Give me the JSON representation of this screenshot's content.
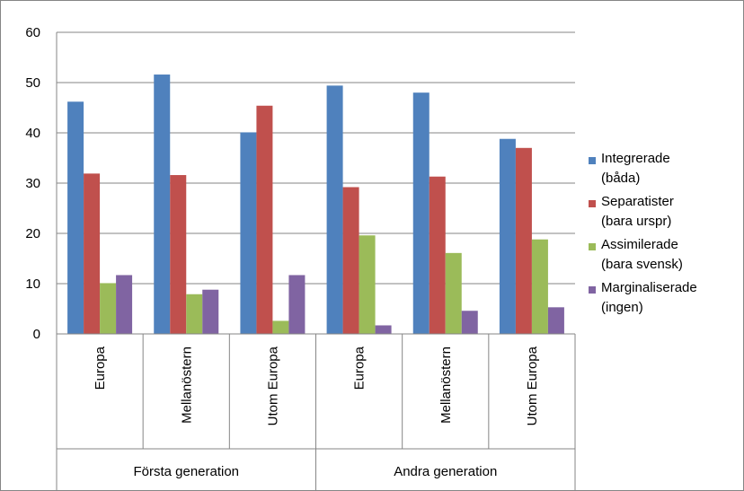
{
  "chart_data": {
    "type": "bar",
    "title": "",
    "xlabel": "",
    "ylabel": "",
    "ylim": [
      0,
      60
    ],
    "yticks": [
      "0",
      "10",
      "20",
      "30",
      "40",
      "50",
      "60"
    ],
    "grid": true,
    "legend_position": "right",
    "groups": [
      {
        "label": "Första generation",
        "categories": [
          "Europa",
          "Mellanöstern",
          "Utom Europa"
        ]
      },
      {
        "label": "Andra generation",
        "categories": [
          "Europa",
          "Mellanöstern",
          "Utom Europa"
        ]
      }
    ],
    "categories": [
      "Europa",
      "Mellanöstern",
      "Utom Europa",
      "Europa",
      "Mellanöstern",
      "Utom Europa"
    ],
    "series": [
      {
        "name": "Integrerade (båda)",
        "legend_lines": [
          "Integrerade",
          "(båda)"
        ],
        "color": "#4F81BD",
        "values": [
          46.2,
          51.6,
          40.1,
          49.4,
          48.0,
          38.8
        ]
      },
      {
        "name": "Separatister (bara urspr)",
        "legend_lines": [
          "Separatister",
          "(bara urspr)"
        ],
        "color": "#C0504D",
        "values": [
          31.9,
          31.6,
          45.4,
          29.2,
          31.3,
          37.0
        ]
      },
      {
        "name": "Assimilerade (bara svensk)",
        "legend_lines": [
          "Assimilerade",
          "(bara svensk)"
        ],
        "color": "#9BBB59",
        "values": [
          10.1,
          7.9,
          2.6,
          19.6,
          16.1,
          18.8
        ]
      },
      {
        "name": "Marginaliserade (ingen)",
        "legend_lines": [
          "Marginaliserade",
          "(ingen)"
        ],
        "color": "#8064A2",
        "values": [
          11.7,
          8.8,
          11.7,
          1.7,
          4.6,
          5.3
        ]
      }
    ]
  }
}
